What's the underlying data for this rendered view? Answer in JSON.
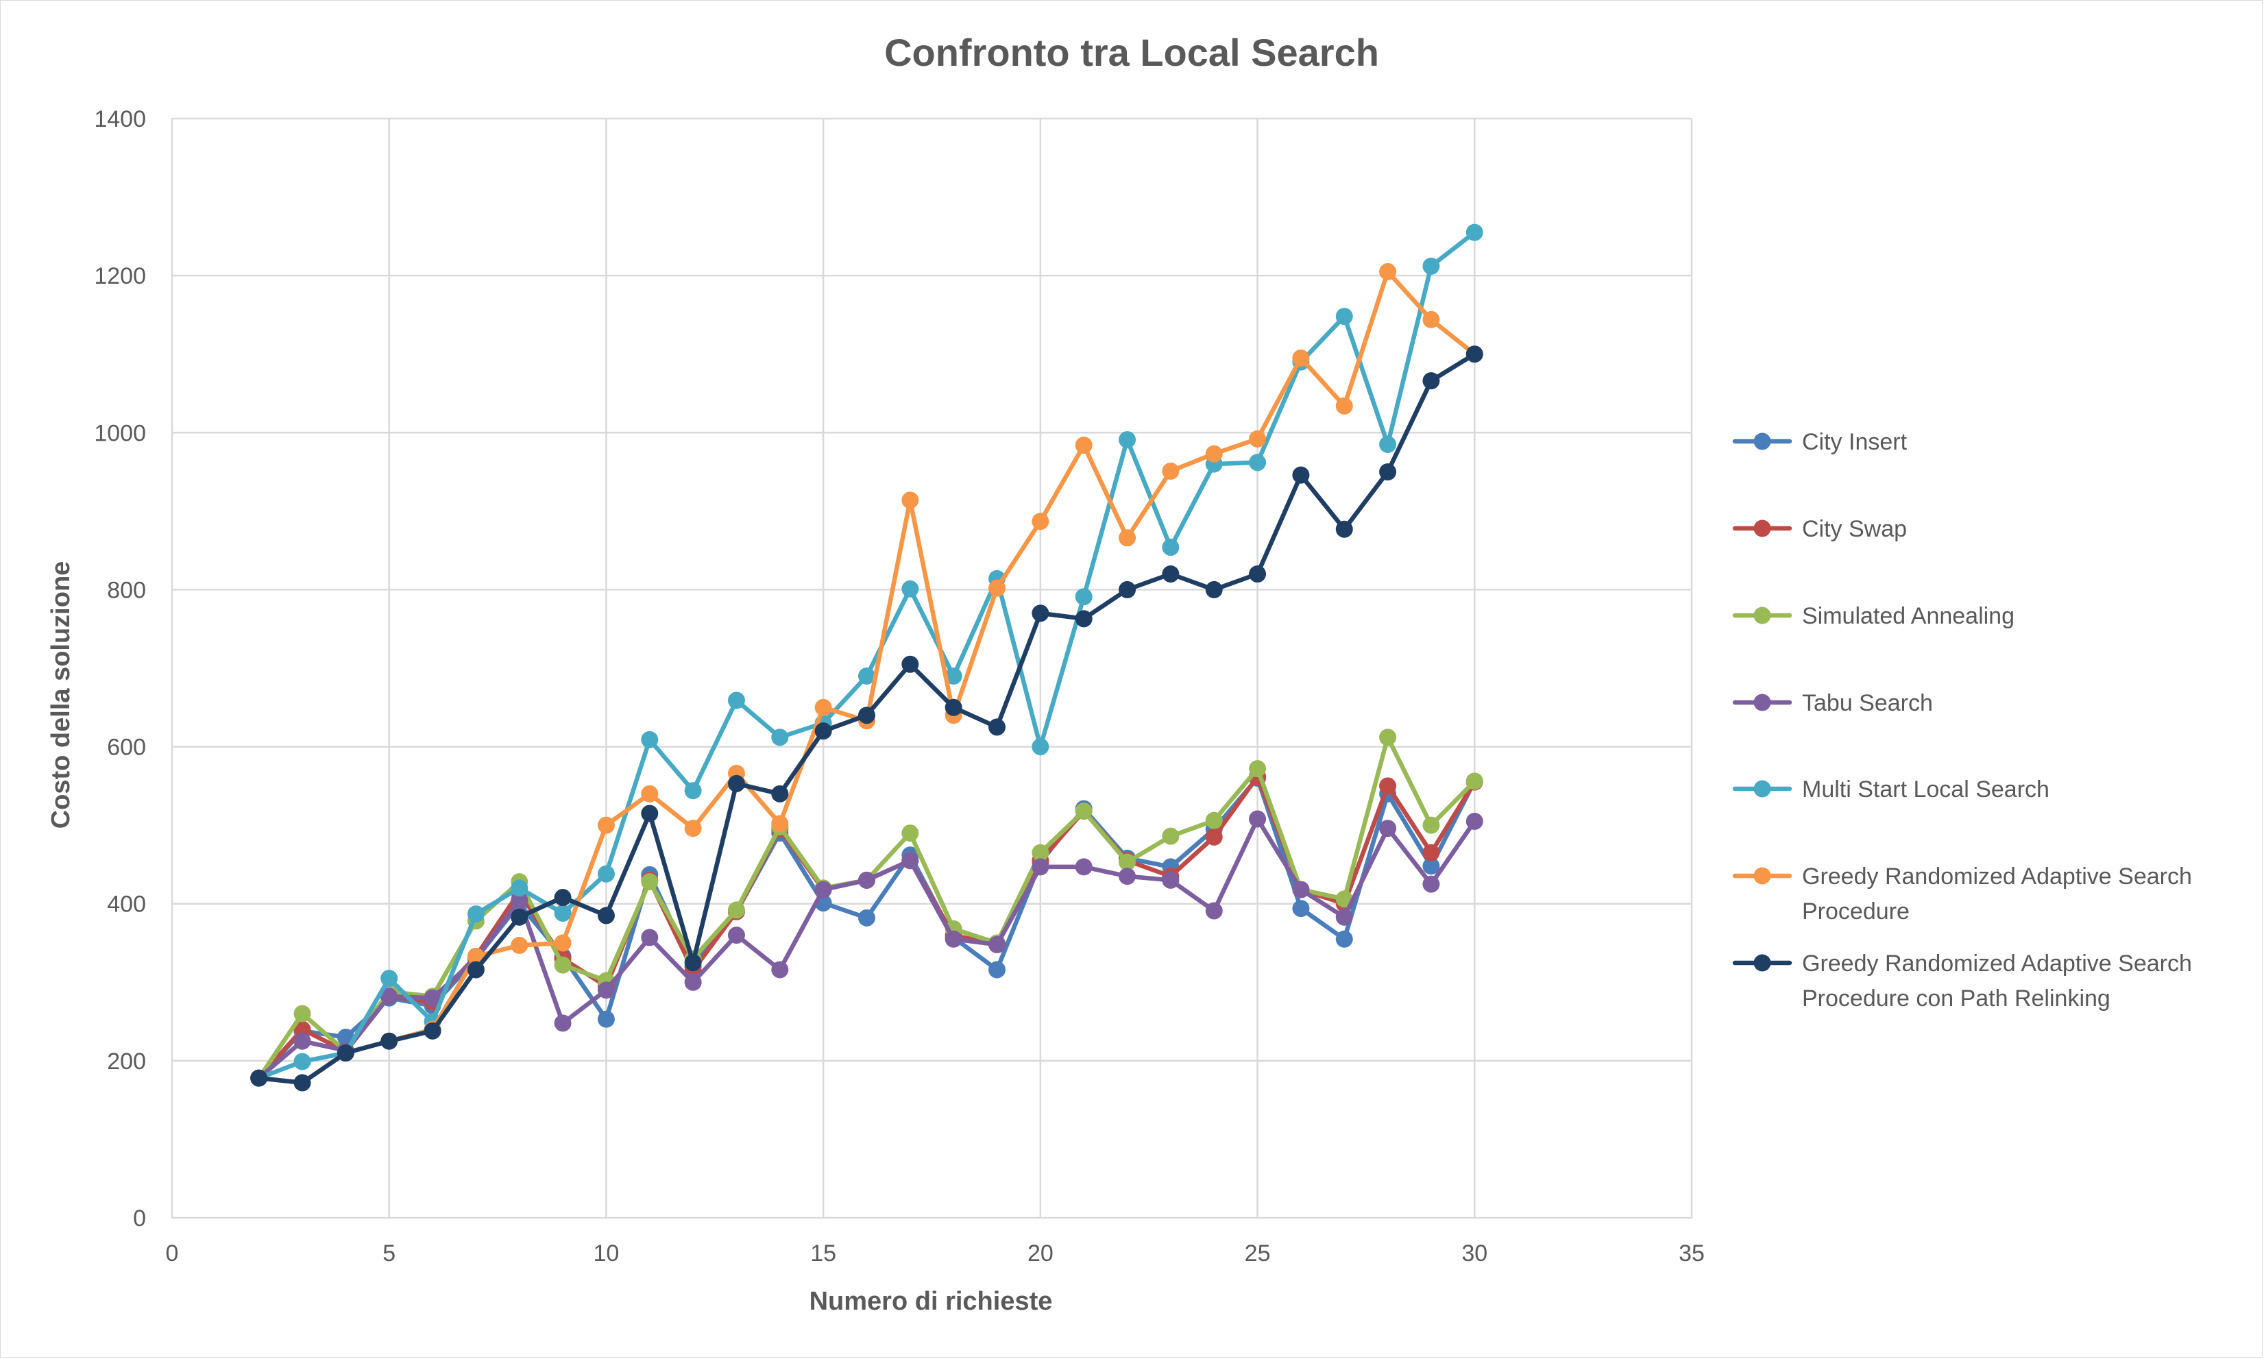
{
  "chart_data": {
    "type": "line",
    "title": "Confronto tra Local Search",
    "xlabel": "Numero di richieste",
    "ylabel": "Costo della soluzione",
    "xlim": [
      0,
      35
    ],
    "ylim": [
      0,
      1400
    ],
    "xticks": [
      0,
      5,
      10,
      15,
      20,
      25,
      30,
      35
    ],
    "yticks": [
      0,
      200,
      400,
      600,
      800,
      1000,
      1200,
      1400
    ],
    "grid": true,
    "legend_position": "right",
    "x": [
      2,
      3,
      4,
      5,
      6,
      7,
      8,
      9,
      10,
      11,
      12,
      13,
      14,
      15,
      16,
      17,
      18,
      19,
      20,
      21,
      22,
      23,
      24,
      25,
      26,
      27,
      28,
      29,
      30
    ],
    "series": [
      {
        "name": "City Insert",
        "color": "#4a7ebb",
        "values": [
          178,
          238,
          230,
          280,
          270,
          330,
          400,
          333,
          253,
          437,
          320,
          390,
          490,
          401,
          382,
          462,
          357,
          316,
          453,
          521,
          458,
          447,
          495,
          560,
          394,
          355,
          540,
          448,
          556
        ]
      },
      {
        "name": "City Swap",
        "color": "#be4b48",
        "values": [
          178,
          240,
          212,
          282,
          275,
          333,
          415,
          330,
          295,
          430,
          315,
          390,
          495,
          418,
          430,
          455,
          360,
          348,
          455,
          518,
          455,
          435,
          485,
          562,
          418,
          400,
          550,
          465,
          555
        ]
      },
      {
        "name": "Simulated Annealing",
        "color": "#98b954",
        "values": [
          178,
          260,
          212,
          288,
          282,
          378,
          428,
          322,
          302,
          428,
          330,
          392,
          498,
          420,
          430,
          490,
          368,
          350,
          465,
          518,
          453,
          486,
          506,
          572,
          418,
          406,
          612,
          500,
          556
        ]
      },
      {
        "name": "Tabu Search",
        "color": "#7d5fa0",
        "values": [
          178,
          225,
          213,
          282,
          280,
          330,
          405,
          248,
          290,
          357,
          300,
          360,
          316,
          418,
          430,
          455,
          355,
          348,
          447,
          447,
          435,
          430,
          391,
          508,
          418,
          383,
          496,
          425,
          505
        ]
      },
      {
        "name": "Multi Start Local Search",
        "color": "#46aac5",
        "values": [
          178,
          199,
          210,
          305,
          250,
          387,
          420,
          388,
          438,
          609,
          544,
          659,
          612,
          630,
          690,
          801,
          690,
          814,
          600,
          791,
          991,
          854,
          960,
          962,
          1090,
          1148,
          985,
          1212,
          1255
        ]
      },
      {
        "name": "Greedy Randomized Adaptive Search Procedure",
        "color": "#f79646",
        "values": [
          178,
          172,
          210,
          225,
          240,
          333,
          347,
          350,
          500,
          540,
          496,
          566,
          502,
          650,
          633,
          914,
          640,
          802,
          887,
          984,
          866,
          951,
          973,
          992,
          1095,
          1034,
          1205,
          1144,
          1100
        ]
      },
      {
        "name": "Greedy Randomized Adaptive Search Procedure con Path Relinking",
        "color": "#1f3e63",
        "values": [
          178,
          172,
          210,
          225,
          238,
          316,
          383,
          408,
          385,
          515,
          325,
          553,
          540,
          620,
          640,
          705,
          650,
          625,
          770,
          763,
          800,
          820,
          800,
          820,
          946,
          877,
          950,
          1066,
          1100
        ]
      }
    ],
    "legend": [
      {
        "lines": [
          "City Insert"
        ],
        "color": "#4a7ebb"
      },
      {
        "lines": [
          "City Swap"
        ],
        "color": "#be4b48"
      },
      {
        "lines": [
          "Simulated Annealing"
        ],
        "color": "#98b954"
      },
      {
        "lines": [
          "Tabu Search"
        ],
        "color": "#7d5fa0"
      },
      {
        "lines": [
          "Multi Start Local Search"
        ],
        "color": "#46aac5"
      },
      {
        "lines": [
          "Greedy Randomized Adaptive Search",
          "Procedure"
        ],
        "color": "#f79646"
      },
      {
        "lines": [
          "Greedy Randomized Adaptive Search",
          "Procedure con Path Relinking"
        ],
        "color": "#1f3e63"
      }
    ]
  }
}
